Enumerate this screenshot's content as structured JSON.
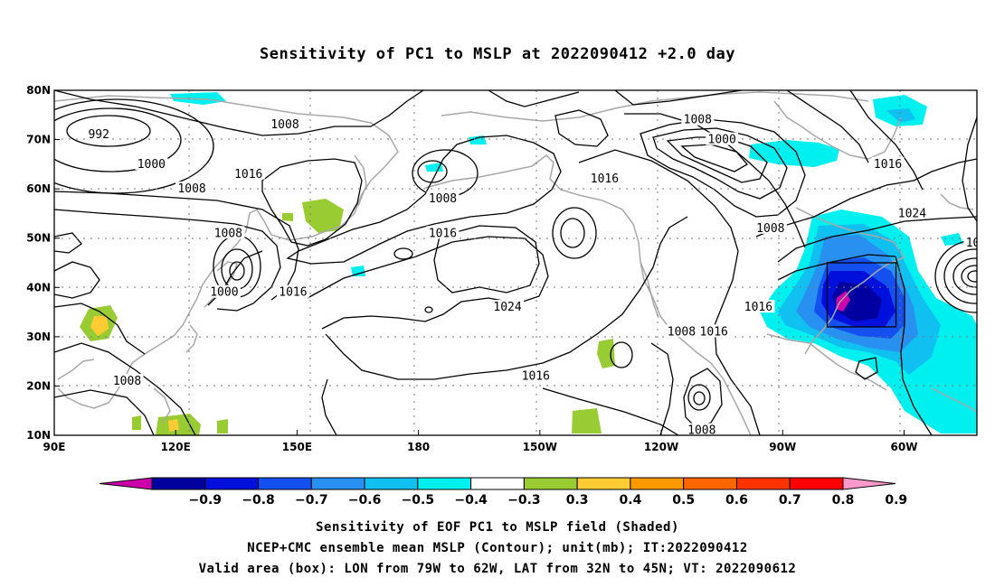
{
  "title": "Sensitivity of PC1 to MSLP at 2022090412 +2.0 day",
  "map": {
    "lon_ticks": [
      "90E",
      "120E",
      "150E",
      "180",
      "150W",
      "120W",
      "90W",
      "60W"
    ],
    "lat_ticks": [
      "80N",
      "70N",
      "60N",
      "50N",
      "40N",
      "30N",
      "20N",
      "10N"
    ],
    "lon_range_deg_east": [
      90,
      318
    ],
    "lat_range": [
      10,
      80
    ],
    "box": {
      "lon_from": "79W",
      "lon_to": "62W",
      "lat_from": "32N",
      "lat_to": "45N"
    }
  },
  "contour_labels": [
    {
      "text": "992",
      "lon": 101,
      "lat": 71
    },
    {
      "text": "1000",
      "lon": 114,
      "lat": 65
    },
    {
      "text": "1008",
      "lon": 124,
      "lat": 60
    },
    {
      "text": "1008",
      "lon": 147,
      "lat": 73
    },
    {
      "text": "1016",
      "lon": 138,
      "lat": 63
    },
    {
      "text": "1008",
      "lon": 133,
      "lat": 51
    },
    {
      "text": "1000",
      "lon": 132,
      "lat": 39
    },
    {
      "text": "1016",
      "lon": 149,
      "lat": 39
    },
    {
      "text": "1008",
      "lon": 186,
      "lat": 58
    },
    {
      "text": "1016",
      "lon": 186,
      "lat": 51
    },
    {
      "text": "1024",
      "lon": 202,
      "lat": 36
    },
    {
      "text": "1016",
      "lon": 209,
      "lat": 22
    },
    {
      "text": "1016",
      "lon": 226,
      "lat": 62
    },
    {
      "text": "1008",
      "lon": 249,
      "lat": 74
    },
    {
      "text": "1000",
      "lon": 255,
      "lat": 70
    },
    {
      "text": "1008",
      "lon": 267,
      "lat": 52
    },
    {
      "text": "1016",
      "lon": 296,
      "lat": 65
    },
    {
      "text": "1024",
      "lon": 302,
      "lat": 55
    },
    {
      "text": "1016",
      "lon": 264,
      "lat": 36
    },
    {
      "text": "1008",
      "lon": 245,
      "lat": 31
    },
    {
      "text": "1016",
      "lon": 253,
      "lat": 31
    },
    {
      "text": "1008",
      "lon": 250,
      "lat": 11
    },
    {
      "text": "1008",
      "lon": 108,
      "lat": 21
    },
    {
      "text": "10",
      "lon": 317,
      "lat": 49
    }
  ],
  "colorbar": {
    "levels": [
      "-0.9",
      "-0.8",
      "-0.7",
      "-0.6",
      "-0.5",
      "-0.4",
      "-0.3",
      "0.3",
      "0.4",
      "0.5",
      "0.6",
      "0.7",
      "0.8",
      "0.9"
    ],
    "colors": [
      "#cc00aa",
      "#0000a0",
      "#0010dc",
      "#1450f0",
      "#2890f0",
      "#10c0f0",
      "#00f0f0",
      "#ffffff",
      "#99cc33",
      "#ffcc33",
      "#ff9900",
      "#ff6600",
      "#ff3300",
      "#ff0000",
      "#ff99cc"
    ]
  },
  "caption": {
    "line1": "Sensitivity of EOF PC1 to MSLP field (Shaded)",
    "line2": "NCEP+CMC ensemble mean MSLP (Contour); unit(mb); IT:2022090412",
    "line3": "Valid area (box): LON from 79W to 62W, LAT from 32N to 45N; VT: 2022090612"
  }
}
